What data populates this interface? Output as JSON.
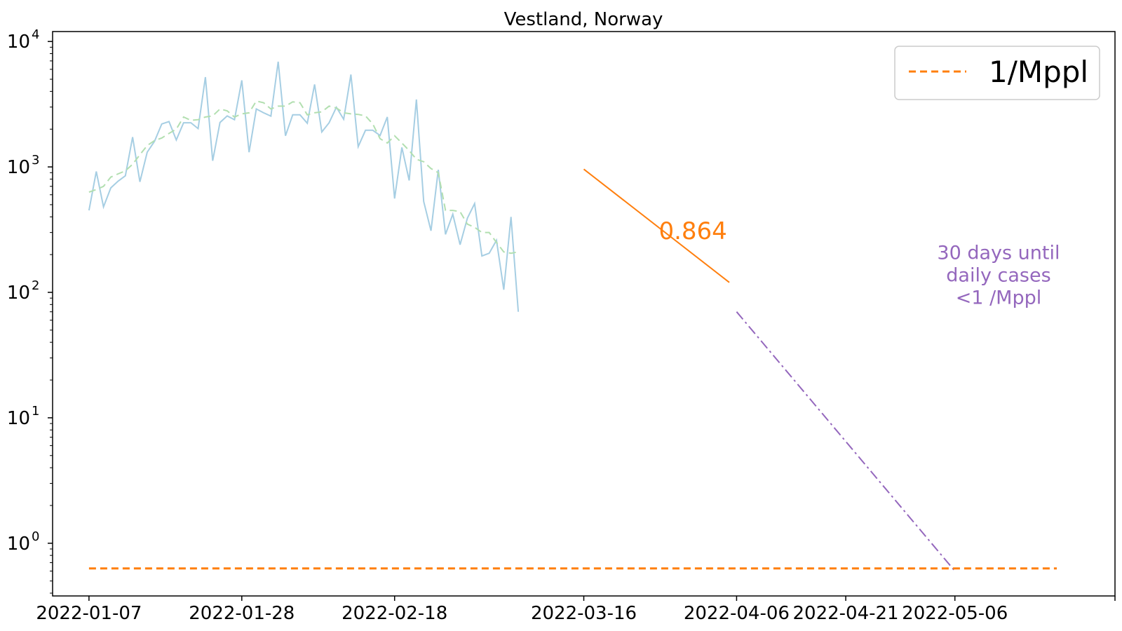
{
  "chart_data": {
    "type": "line",
    "title": "Vestland, Norway",
    "xlabel": "",
    "ylabel": "",
    "yscale": "log",
    "ylim": [
      0.38,
      12000
    ],
    "x_range": [
      "2022-01-02",
      "2022-05-28"
    ],
    "x_ticks": [
      "2022-01-07",
      "2022-01-28",
      "2022-02-18",
      "2022-03-16",
      "2022-04-06",
      "2022-04-21",
      "2022-05-06"
    ],
    "y_ticks": [
      {
        "value": 1,
        "base": "10",
        "exp": "0"
      },
      {
        "value": 10,
        "base": "10",
        "exp": "1"
      },
      {
        "value": 100,
        "base": "10",
        "exp": "2"
      },
      {
        "value": 1000,
        "base": "10",
        "exp": "3"
      },
      {
        "value": 10000,
        "base": "10",
        "exp": "4"
      }
    ],
    "grid": false,
    "legend": {
      "placement": "top-right",
      "entries": [
        {
          "label": "1/Mppl",
          "color": "#ff7f0e",
          "style": "dashed"
        }
      ]
    },
    "series": [
      {
        "kind": "daily-cases",
        "color": "#a6cee3",
        "style": "solid",
        "x_start": "2022-01-07",
        "values": [
          450,
          920,
          480,
          680,
          770,
          850,
          1730,
          760,
          1310,
          1600,
          2200,
          2300,
          1640,
          2250,
          2250,
          2020,
          5200,
          1120,
          2260,
          2550,
          2380,
          4900,
          1310,
          2900,
          2700,
          2540,
          6900,
          1770,
          2600,
          2600,
          2230,
          4550,
          1900,
          2250,
          2990,
          2400,
          5450,
          1450,
          1960,
          1960,
          1780,
          2500,
          560,
          1430,
          780,
          3450,
          530,
          310,
          950,
          290,
          420,
          240,
          390,
          510,
          195,
          205,
          260,
          105,
          400,
          70
        ]
      },
      {
        "kind": "rolling-average",
        "color": "#b2dfb0",
        "style": "dashed",
        "x_start": "2022-01-07",
        "values": [
          630,
          660,
          700,
          830,
          880,
          930,
          1050,
          1250,
          1480,
          1620,
          1700,
          1850,
          2000,
          2500,
          2350,
          2380,
          2500,
          2550,
          2900,
          2800,
          2500,
          2650,
          2700,
          3350,
          3250,
          2900,
          3050,
          3050,
          3300,
          3250,
          2600,
          2700,
          2750,
          3050,
          2950,
          2700,
          2650,
          2620,
          2550,
          2200,
          1680,
          1550,
          1770,
          1550,
          1350,
          1150,
          1100,
          970,
          900,
          450,
          450,
          440,
          350,
          330,
          300,
          300,
          250,
          210,
          205,
          210
        ]
      },
      {
        "kind": "fit",
        "color": "#ff7f0e",
        "style": "solid",
        "x": [
          "2022-03-16",
          "2022-04-05"
        ],
        "values": [
          960,
          120
        ]
      },
      {
        "kind": "projection",
        "color": "#9467bd",
        "style": "dashdot",
        "x": [
          "2022-04-06",
          "2022-05-06"
        ],
        "values": [
          70,
          0.6
        ]
      },
      {
        "kind": "threshold",
        "name": "1/Mppl",
        "color": "#ff7f0e",
        "style": "dashed",
        "x": [
          "2022-01-07",
          "2022-05-20"
        ],
        "values": [
          0.63,
          0.63
        ]
      }
    ],
    "annotations": [
      {
        "kind": "slope",
        "text": "0.864",
        "color": "#ff7f0e",
        "x": "2022-03-31",
        "y": 310
      },
      {
        "kind": "forecast",
        "lines": [
          "30 days until",
          "daily cases",
          "<1 /Mppl"
        ],
        "color": "#9467bd",
        "x": "2022-05-12",
        "y": 150
      }
    ]
  }
}
